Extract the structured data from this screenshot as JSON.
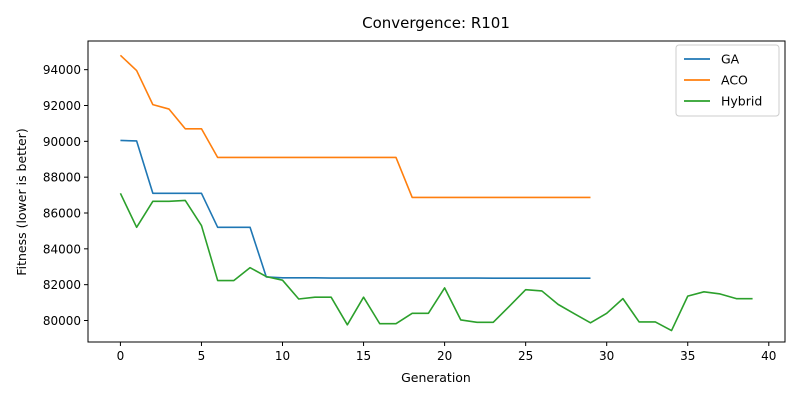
{
  "chart_data": {
    "type": "line",
    "title": "Convergence: R101",
    "xlabel": "Generation",
    "ylabel": "Fitness (lower is better)",
    "xlim": [
      -2,
      41
    ],
    "ylim": [
      78800,
      95600
    ],
    "xticks": [
      0,
      5,
      10,
      15,
      20,
      25,
      30,
      35,
      40
    ],
    "yticks": [
      80000,
      82000,
      84000,
      86000,
      88000,
      90000,
      92000,
      94000
    ],
    "grid": false,
    "legend_position": "top-right",
    "series": [
      {
        "name": "GA",
        "color": "#1f77b4",
        "x": [
          0,
          1,
          2,
          3,
          4,
          5,
          6,
          7,
          8,
          9,
          10,
          11,
          12,
          13,
          14,
          15,
          16,
          17,
          18,
          19,
          20,
          21,
          22,
          23,
          24,
          25,
          26,
          27,
          28,
          29
        ],
        "values": [
          90050,
          90020,
          87100,
          87100,
          87100,
          87100,
          85200,
          85200,
          85200,
          82430,
          82380,
          82380,
          82380,
          82370,
          82370,
          82370,
          82370,
          82370,
          82370,
          82370,
          82370,
          82370,
          82370,
          82360,
          82360,
          82360,
          82360,
          82360,
          82360,
          82360
        ]
      },
      {
        "name": "ACO",
        "color": "#ff7f0e",
        "x": [
          0,
          1,
          2,
          3,
          4,
          5,
          6,
          7,
          8,
          9,
          10,
          11,
          12,
          13,
          14,
          15,
          16,
          17,
          18,
          19,
          20,
          21,
          22,
          23,
          24,
          25,
          26,
          27,
          28,
          29
        ],
        "values": [
          94800,
          93950,
          92050,
          91800,
          90700,
          90700,
          89100,
          89100,
          89100,
          89100,
          89100,
          89100,
          89100,
          89100,
          89100,
          89100,
          89100,
          89100,
          86870,
          86870,
          86870,
          86870,
          86870,
          86870,
          86870,
          86870,
          86870,
          86870,
          86870,
          86870
        ]
      },
      {
        "name": "Hybrid",
        "color": "#2ca02c",
        "x": [
          0,
          1,
          2,
          3,
          4,
          5,
          6,
          7,
          8,
          9,
          10,
          11,
          12,
          13,
          14,
          15,
          16,
          17,
          18,
          19,
          20,
          21,
          22,
          23,
          24,
          25,
          26,
          27,
          28,
          29,
          30,
          31,
          32,
          33,
          34,
          35,
          36,
          37,
          38,
          39
        ],
        "values": [
          87100,
          85200,
          86650,
          86650,
          86700,
          85300,
          82230,
          82230,
          82950,
          82450,
          82250,
          81200,
          81300,
          81300,
          79760,
          81300,
          79820,
          79820,
          80400,
          80400,
          81820,
          80030,
          79900,
          79900,
          80800,
          81720,
          81650,
          80900,
          80380,
          79870,
          80400,
          81220,
          79920,
          79920,
          79440,
          81360,
          81600,
          81480,
          81220,
          81220
        ]
      }
    ]
  }
}
